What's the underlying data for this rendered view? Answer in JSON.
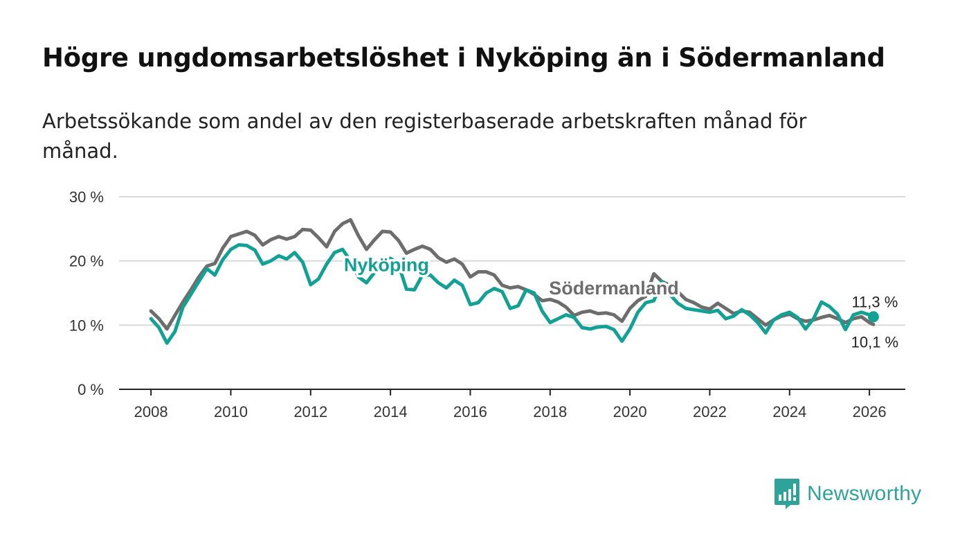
{
  "title": "Högre ungdomsarbetslöshet i Nyköping än i Södermanland",
  "subtitle": "Arbetssökande som andel av den registerbaserade arbetskraften månad för månad.",
  "brand": {
    "name": "Newsworthy",
    "icon": "newsworthy-logo-icon",
    "color": "#2fa39a"
  },
  "chart_data": {
    "type": "line",
    "title": "Högre ungdomsarbetslöshet i Nyköping än i Södermanland",
    "xlabel": "",
    "ylabel": "",
    "xlim": [
      2007.2,
      2026.9
    ],
    "ylim": [
      0,
      30
    ],
    "grid": true,
    "x_ticks": [
      {
        "value": 2008,
        "label": "2008"
      },
      {
        "value": 2010,
        "label": "2010"
      },
      {
        "value": 2012,
        "label": "2012"
      },
      {
        "value": 2014,
        "label": "2014"
      },
      {
        "value": 2016,
        "label": "2016"
      },
      {
        "value": 2018,
        "label": "2018"
      },
      {
        "value": 2020,
        "label": "2020"
      },
      {
        "value": 2022,
        "label": "2022"
      },
      {
        "value": 2024,
        "label": "2024"
      },
      {
        "value": 2026,
        "label": "2026"
      }
    ],
    "y_ticks": [
      {
        "value": 0,
        "label": "0 %"
      },
      {
        "value": 10,
        "label": "10 %"
      },
      {
        "value": 20,
        "label": "20 %"
      },
      {
        "value": 30,
        "label": "30 %"
      }
    ],
    "series": [
      {
        "name": "Södermanland",
        "label": "Södermanland",
        "color": "#6d6d6d",
        "label_at": [
          2019.6,
          14.8
        ],
        "end_label": "10,1 %",
        "points": [
          [
            2008.0,
            12.2
          ],
          [
            2008.2,
            11.0
          ],
          [
            2008.4,
            9.4
          ],
          [
            2008.6,
            11.5
          ],
          [
            2008.8,
            13.6
          ],
          [
            2009.0,
            15.5
          ],
          [
            2009.2,
            17.5
          ],
          [
            2009.4,
            19.2
          ],
          [
            2009.6,
            19.6
          ],
          [
            2009.8,
            22.0
          ],
          [
            2010.0,
            23.8
          ],
          [
            2010.2,
            24.2
          ],
          [
            2010.4,
            24.6
          ],
          [
            2010.6,
            24.0
          ],
          [
            2010.8,
            22.5
          ],
          [
            2011.0,
            23.3
          ],
          [
            2011.2,
            23.8
          ],
          [
            2011.4,
            23.4
          ],
          [
            2011.6,
            23.8
          ],
          [
            2011.8,
            24.9
          ],
          [
            2012.0,
            24.8
          ],
          [
            2012.2,
            23.6
          ],
          [
            2012.4,
            22.2
          ],
          [
            2012.6,
            24.6
          ],
          [
            2012.8,
            25.8
          ],
          [
            2013.0,
            26.4
          ],
          [
            2013.2,
            23.9
          ],
          [
            2013.4,
            21.8
          ],
          [
            2013.6,
            23.3
          ],
          [
            2013.8,
            24.6
          ],
          [
            2014.0,
            24.5
          ],
          [
            2014.2,
            23.2
          ],
          [
            2014.4,
            21.2
          ],
          [
            2014.6,
            21.8
          ],
          [
            2014.8,
            22.3
          ],
          [
            2015.0,
            21.8
          ],
          [
            2015.2,
            20.5
          ],
          [
            2015.4,
            19.8
          ],
          [
            2015.6,
            20.3
          ],
          [
            2015.8,
            19.5
          ],
          [
            2016.0,
            17.5
          ],
          [
            2016.2,
            18.3
          ],
          [
            2016.4,
            18.3
          ],
          [
            2016.6,
            17.8
          ],
          [
            2016.8,
            16.2
          ],
          [
            2017.0,
            15.8
          ],
          [
            2017.2,
            16.0
          ],
          [
            2017.4,
            15.5
          ],
          [
            2017.6,
            14.8
          ],
          [
            2017.8,
            13.8
          ],
          [
            2018.0,
            14.0
          ],
          [
            2018.2,
            13.6
          ],
          [
            2018.4,
            12.8
          ],
          [
            2018.6,
            11.5
          ],
          [
            2018.8,
            12.0
          ],
          [
            2019.0,
            12.2
          ],
          [
            2019.2,
            11.8
          ],
          [
            2019.4,
            11.9
          ],
          [
            2019.6,
            11.6
          ],
          [
            2019.8,
            10.6
          ],
          [
            2020.0,
            12.6
          ],
          [
            2020.2,
            13.8
          ],
          [
            2020.4,
            14.5
          ],
          [
            2020.6,
            18.0
          ],
          [
            2020.8,
            16.8
          ],
          [
            2021.0,
            16.2
          ],
          [
            2021.2,
            15.2
          ],
          [
            2021.4,
            14.0
          ],
          [
            2021.6,
            13.5
          ],
          [
            2021.8,
            12.8
          ],
          [
            2022.0,
            12.5
          ],
          [
            2022.2,
            13.4
          ],
          [
            2022.4,
            12.6
          ],
          [
            2022.6,
            11.8
          ],
          [
            2022.8,
            12.2
          ],
          [
            2023.0,
            12.0
          ],
          [
            2023.2,
            11.0
          ],
          [
            2023.4,
            10.0
          ],
          [
            2023.6,
            10.8
          ],
          [
            2023.8,
            11.4
          ],
          [
            2024.0,
            11.7
          ],
          [
            2024.2,
            11.0
          ],
          [
            2024.4,
            10.6
          ],
          [
            2024.6,
            10.8
          ],
          [
            2024.8,
            11.2
          ],
          [
            2025.0,
            11.5
          ],
          [
            2025.2,
            11.0
          ],
          [
            2025.4,
            10.4
          ],
          [
            2025.6,
            11.0
          ],
          [
            2025.8,
            11.3
          ],
          [
            2026.0,
            10.4
          ],
          [
            2026.1,
            10.1
          ]
        ]
      },
      {
        "name": "Nyköping",
        "label": "Nyköping",
        "color": "#14a195",
        "label_at": [
          2013.9,
          18.4
        ],
        "end_label": "11,3 %",
        "points": [
          [
            2008.0,
            11.0
          ],
          [
            2008.2,
            9.6
          ],
          [
            2008.4,
            7.2
          ],
          [
            2008.6,
            9.0
          ],
          [
            2008.8,
            12.8
          ],
          [
            2009.0,
            14.8
          ],
          [
            2009.2,
            16.8
          ],
          [
            2009.4,
            18.8
          ],
          [
            2009.6,
            17.8
          ],
          [
            2009.8,
            20.2
          ],
          [
            2010.0,
            21.8
          ],
          [
            2010.2,
            22.5
          ],
          [
            2010.4,
            22.4
          ],
          [
            2010.6,
            21.7
          ],
          [
            2010.8,
            19.5
          ],
          [
            2011.0,
            20.0
          ],
          [
            2011.2,
            20.8
          ],
          [
            2011.4,
            20.3
          ],
          [
            2011.6,
            21.3
          ],
          [
            2011.8,
            19.8
          ],
          [
            2012.0,
            16.3
          ],
          [
            2012.2,
            17.2
          ],
          [
            2012.4,
            19.5
          ],
          [
            2012.6,
            21.3
          ],
          [
            2012.8,
            21.8
          ],
          [
            2013.0,
            20.0
          ],
          [
            2013.2,
            17.5
          ],
          [
            2013.4,
            16.6
          ],
          [
            2013.6,
            18.2
          ],
          [
            2013.8,
            20.0
          ],
          [
            2014.0,
            20.4
          ],
          [
            2014.2,
            19.5
          ],
          [
            2014.4,
            15.6
          ],
          [
            2014.6,
            15.5
          ],
          [
            2014.8,
            17.8
          ],
          [
            2015.0,
            17.8
          ],
          [
            2015.2,
            16.6
          ],
          [
            2015.4,
            15.8
          ],
          [
            2015.6,
            17.0
          ],
          [
            2015.8,
            16.2
          ],
          [
            2016.0,
            13.2
          ],
          [
            2016.2,
            13.5
          ],
          [
            2016.4,
            15.0
          ],
          [
            2016.6,
            15.7
          ],
          [
            2016.8,
            15.2
          ],
          [
            2017.0,
            12.6
          ],
          [
            2017.2,
            13.0
          ],
          [
            2017.4,
            15.5
          ],
          [
            2017.6,
            15.0
          ],
          [
            2017.8,
            12.2
          ],
          [
            2018.0,
            10.4
          ],
          [
            2018.2,
            11.0
          ],
          [
            2018.4,
            11.6
          ],
          [
            2018.6,
            11.2
          ],
          [
            2018.8,
            9.6
          ],
          [
            2019.0,
            9.4
          ],
          [
            2019.2,
            9.7
          ],
          [
            2019.4,
            9.8
          ],
          [
            2019.6,
            9.3
          ],
          [
            2019.8,
            7.5
          ],
          [
            2020.0,
            9.4
          ],
          [
            2020.2,
            12.0
          ],
          [
            2020.4,
            13.5
          ],
          [
            2020.6,
            13.8
          ],
          [
            2020.8,
            16.8
          ],
          [
            2021.0,
            14.8
          ],
          [
            2021.2,
            13.4
          ],
          [
            2021.4,
            12.6
          ],
          [
            2021.6,
            12.4
          ],
          [
            2021.8,
            12.2
          ],
          [
            2022.0,
            12.0
          ],
          [
            2022.2,
            12.3
          ],
          [
            2022.4,
            11.0
          ],
          [
            2022.6,
            11.4
          ],
          [
            2022.8,
            12.4
          ],
          [
            2023.0,
            11.6
          ],
          [
            2023.2,
            10.4
          ],
          [
            2023.4,
            8.8
          ],
          [
            2023.6,
            10.8
          ],
          [
            2023.8,
            11.6
          ],
          [
            2024.0,
            12.0
          ],
          [
            2024.2,
            11.2
          ],
          [
            2024.4,
            9.4
          ],
          [
            2024.6,
            11.0
          ],
          [
            2024.8,
            13.6
          ],
          [
            2025.0,
            12.9
          ],
          [
            2025.2,
            11.7
          ],
          [
            2025.4,
            9.3
          ],
          [
            2025.6,
            11.6
          ],
          [
            2025.8,
            12.0
          ],
          [
            2026.0,
            11.6
          ],
          [
            2026.1,
            11.3
          ]
        ]
      }
    ]
  }
}
